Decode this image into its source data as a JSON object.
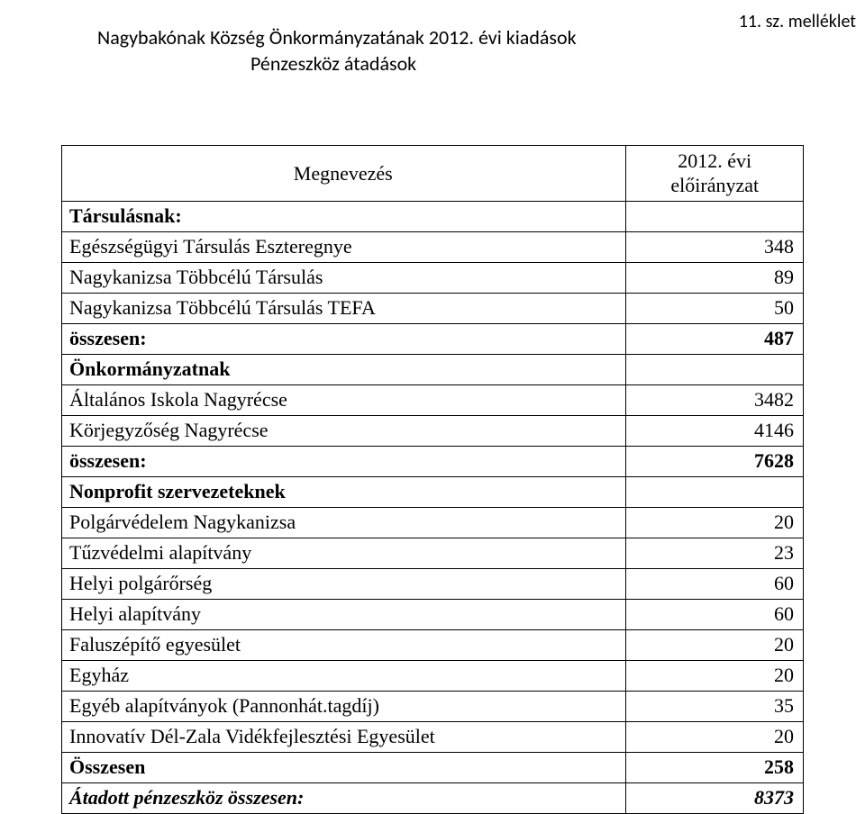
{
  "annex_label": "11. sz. melléklet",
  "title_line1": "Nagybakónak Község Önkormányzatának 2012. évi kiadások",
  "title_line2": "Pénzeszköz átadások",
  "header": {
    "name_col": "Megnevezés",
    "value_col_l1": "2012. évi",
    "value_col_l2": "előirányzat"
  },
  "rows": [
    {
      "label": "Társulásnak:",
      "value": "",
      "bold": true
    },
    {
      "label": "Egészségügyi Társulás Eszteregnye",
      "value": "348"
    },
    {
      "label": "Nagykanizsa Többcélú Társulás",
      "value": "89"
    },
    {
      "label": "Nagykanizsa Többcélú Társulás TEFA",
      "value": "50"
    },
    {
      "label": "összesen:",
      "value": "487",
      "bold": true
    },
    {
      "label": "Önkormányzatnak",
      "value": "",
      "bold": true
    },
    {
      "label": "Általános Iskola Nagyrécse",
      "value": "3482"
    },
    {
      "label": "Körjegyzőség Nagyrécse",
      "value": "4146"
    },
    {
      "label": "összesen:",
      "value": "7628",
      "bold": true
    },
    {
      "label": "Nonprofit szervezeteknek",
      "value": "",
      "bold": true
    },
    {
      "label": "Polgárvédelem Nagykanizsa",
      "value": "20"
    },
    {
      "label": "Tűzvédelmi alapítvány",
      "value": "23"
    },
    {
      "label": "Helyi polgárőrség",
      "value": "60"
    },
    {
      "label": "Helyi alapítvány",
      "value": "60"
    },
    {
      "label": "Faluszépítő egyesület",
      "value": "20"
    },
    {
      "label": "Egyház",
      "value": "20"
    },
    {
      "label": "Egyéb alapítványok (Pannonhát.tagdíj)",
      "value": "35"
    },
    {
      "label": "Innovatív Dél-Zala Vidékfejlesztési Egyesület",
      "value": "20"
    },
    {
      "label": "Összesen",
      "value": "258",
      "bold": true
    },
    {
      "label": "Átadott pénzeszköz összesen:",
      "value": "8373",
      "bold": true,
      "italic": true
    }
  ]
}
